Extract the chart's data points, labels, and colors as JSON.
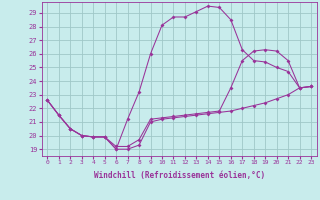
{
  "xlabel": "Windchill (Refroidissement éolien,°C)",
  "bg_color": "#c8ecec",
  "grid_color": "#a0c8c8",
  "line_color": "#993399",
  "xlim": [
    -0.5,
    23.5
  ],
  "ylim": [
    18.5,
    29.8
  ],
  "yticks": [
    19,
    20,
    21,
    22,
    23,
    24,
    25,
    26,
    27,
    28,
    29
  ],
  "xticks": [
    0,
    1,
    2,
    3,
    4,
    5,
    6,
    7,
    8,
    9,
    10,
    11,
    12,
    13,
    14,
    15,
    16,
    17,
    18,
    19,
    20,
    21,
    22,
    23
  ],
  "series1_x": [
    0,
    1,
    2,
    3,
    4,
    5,
    6,
    7,
    8,
    9,
    10,
    11,
    12,
    13,
    14,
    15,
    16,
    17,
    18,
    19,
    20,
    21,
    22,
    23
  ],
  "series1_y": [
    22.6,
    21.5,
    20.5,
    20.0,
    19.9,
    19.9,
    19.0,
    19.0,
    19.3,
    21.0,
    21.2,
    21.3,
    21.4,
    21.5,
    21.6,
    21.7,
    21.8,
    22.0,
    22.2,
    22.4,
    22.7,
    23.0,
    23.5,
    23.6
  ],
  "series2_x": [
    0,
    1,
    2,
    3,
    4,
    5,
    6,
    7,
    8,
    9,
    10,
    11,
    12,
    13,
    14,
    15,
    16,
    17,
    18,
    19,
    20,
    21,
    22,
    23
  ],
  "series2_y": [
    22.6,
    21.5,
    20.5,
    20.0,
    19.9,
    19.9,
    19.0,
    21.2,
    23.2,
    26.0,
    28.1,
    28.7,
    28.7,
    29.1,
    29.5,
    29.4,
    28.5,
    26.3,
    25.5,
    25.4,
    25.0,
    24.7,
    23.5,
    23.6
  ],
  "series3_x": [
    0,
    1,
    2,
    3,
    4,
    5,
    6,
    7,
    8,
    9,
    10,
    11,
    12,
    13,
    14,
    15,
    16,
    17,
    18,
    19,
    20,
    21,
    22,
    23
  ],
  "series3_y": [
    22.6,
    21.5,
    20.5,
    20.0,
    19.9,
    19.9,
    19.2,
    19.2,
    19.7,
    21.2,
    21.3,
    21.4,
    21.5,
    21.6,
    21.7,
    21.8,
    23.5,
    25.5,
    26.2,
    26.3,
    26.2,
    25.5,
    23.5,
    23.6
  ]
}
